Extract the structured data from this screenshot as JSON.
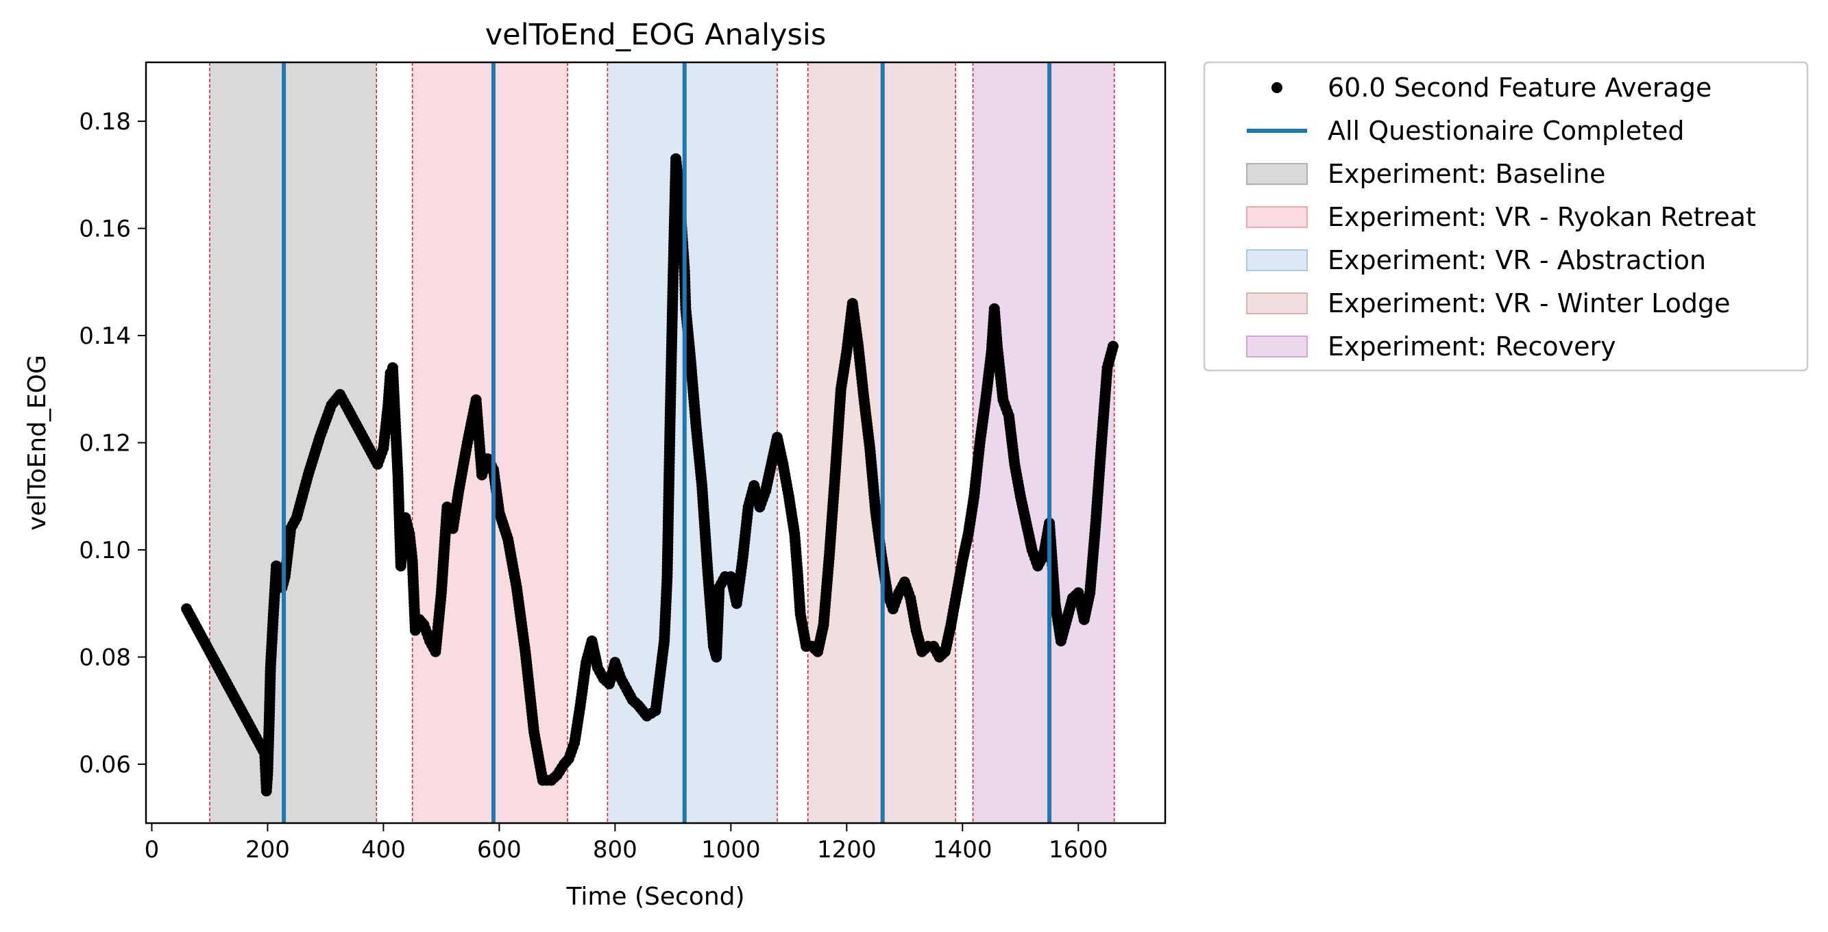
{
  "chart_data": {
    "type": "scatter",
    "title": "velToEnd_EOG Analysis",
    "xlabel": "Time (Second)",
    "ylabel": "velToEnd_EOG",
    "xlim": [
      -10,
      1750
    ],
    "ylim": [
      0.049,
      0.191
    ],
    "xticks": [
      0,
      200,
      400,
      600,
      800,
      1000,
      1200,
      1400,
      1600
    ],
    "yticks": [
      0.06,
      0.08,
      0.1,
      0.12,
      0.14,
      0.16,
      0.18
    ],
    "ytick_labels": [
      "0.06",
      "0.08",
      "0.10",
      "0.12",
      "0.14",
      "0.16",
      "0.18"
    ],
    "grid": false,
    "legend_position": "outside-right",
    "colors": {
      "points": "#000000",
      "questionnaire": "#1f77b4",
      "phase_boundary": "#d62728"
    },
    "legend": [
      {
        "label": "60.0 Second Feature Average",
        "kind": "marker",
        "color": "#000000"
      },
      {
        "label": "All Questionaire Completed",
        "kind": "line",
        "color": "#1f77b4"
      },
      {
        "label": "Experiment: Baseline",
        "kind": "patch",
        "color": "#d9d9d9",
        "edge": "#b0b0b0"
      },
      {
        "label": "Experiment: VR - Ryokan Retreat",
        "kind": "patch",
        "color": "#f8dcdf",
        "edge": "#f0a8b0"
      },
      {
        "label": "Experiment: VR - Abstraction",
        "kind": "patch",
        "color": "#dce8f3",
        "edge": "#a8c8e3"
      },
      {
        "label": "Experiment: VR - Winter Lodge",
        "kind": "patch",
        "color": "#f1dede",
        "edge": "#dcb0b0"
      },
      {
        "label": "Experiment: Recovery",
        "kind": "patch",
        "color": "#ebd8ec",
        "edge": "#cfa8d2"
      }
    ],
    "phases": [
      {
        "name": "Experiment: Baseline",
        "start": 100,
        "end": 388,
        "color": "#d9d9d9"
      },
      {
        "name": "Experiment: VR - Ryokan Retreat",
        "start": 450,
        "end": 718,
        "color": "#f8dcdf"
      },
      {
        "name": "Experiment: VR - Abstraction",
        "start": 787,
        "end": 1080,
        "color": "#dce8f3"
      },
      {
        "name": "Experiment: VR - Winter Lodge",
        "start": 1133,
        "end": 1388,
        "color": "#f1dede"
      },
      {
        "name": "Experiment: Recovery",
        "start": 1418,
        "end": 1662,
        "color": "#ebd8ec"
      }
    ],
    "questionnaire_completed_x": [
      228,
      590,
      920,
      1262,
      1550
    ],
    "series": [
      {
        "name": "60.0 Second Feature Average",
        "x": [
          60,
          120,
          180,
          195,
          198,
          200,
          203,
          205,
          210,
          215,
          220,
          225,
          230,
          240,
          250,
          270,
          290,
          310,
          325,
          335,
          350,
          370,
          390,
          400,
          408,
          412,
          416,
          420,
          425,
          430,
          438,
          445,
          450,
          455,
          462,
          470,
          480,
          490,
          500,
          510,
          520,
          530,
          545,
          560,
          570,
          580,
          590,
          600,
          615,
          630,
          645,
          660,
          675,
          690,
          700,
          712,
          720,
          730,
          740,
          750,
          760,
          770,
          780,
          790,
          800,
          810,
          820,
          830,
          840,
          855,
          870,
          885,
          890,
          895,
          900,
          905,
          910,
          915,
          920,
          922,
          930,
          940,
          950,
          960,
          970,
          975,
          980,
          990,
          1000,
          1010,
          1020,
          1030,
          1040,
          1050,
          1060,
          1070,
          1080,
          1090,
          1100,
          1110,
          1115,
          1120,
          1130,
          1140,
          1150,
          1160,
          1170,
          1180,
          1190,
          1200,
          1210,
          1220,
          1230,
          1240,
          1250,
          1260,
          1270,
          1280,
          1290,
          1300,
          1310,
          1320,
          1330,
          1340,
          1350,
          1360,
          1370,
          1380,
          1390,
          1400,
          1410,
          1420,
          1430,
          1440,
          1450,
          1455,
          1460,
          1470,
          1480,
          1490,
          1500,
          1510,
          1520,
          1530,
          1540,
          1550,
          1560,
          1570,
          1580,
          1590,
          1600,
          1610,
          1620,
          1630,
          1640,
          1650,
          1660
        ],
        "y": [
          0.089,
          0.077,
          0.065,
          0.062,
          0.055,
          0.058,
          0.069,
          0.078,
          0.088,
          0.097,
          0.096,
          0.093,
          0.095,
          0.104,
          0.106,
          0.114,
          0.121,
          0.127,
          0.129,
          0.127,
          0.124,
          0.12,
          0.116,
          0.119,
          0.127,
          0.133,
          0.134,
          0.125,
          0.114,
          0.097,
          0.106,
          0.103,
          0.098,
          0.085,
          0.087,
          0.086,
          0.083,
          0.081,
          0.092,
          0.108,
          0.104,
          0.111,
          0.12,
          0.128,
          0.114,
          0.117,
          0.115,
          0.107,
          0.102,
          0.093,
          0.081,
          0.066,
          0.057,
          0.057,
          0.058,
          0.06,
          0.061,
          0.064,
          0.071,
          0.079,
          0.083,
          0.078,
          0.076,
          0.075,
          0.079,
          0.076,
          0.074,
          0.072,
          0.071,
          0.069,
          0.07,
          0.083,
          0.095,
          0.124,
          0.15,
          0.173,
          0.168,
          0.16,
          0.152,
          0.145,
          0.136,
          0.123,
          0.112,
          0.096,
          0.082,
          0.08,
          0.093,
          0.095,
          0.095,
          0.09,
          0.098,
          0.108,
          0.112,
          0.108,
          0.111,
          0.116,
          0.121,
          0.116,
          0.11,
          0.103,
          0.096,
          0.088,
          0.082,
          0.082,
          0.081,
          0.086,
          0.099,
          0.114,
          0.13,
          0.137,
          0.146,
          0.138,
          0.128,
          0.119,
          0.107,
          0.099,
          0.092,
          0.089,
          0.092,
          0.094,
          0.091,
          0.085,
          0.081,
          0.082,
          0.082,
          0.08,
          0.081,
          0.086,
          0.092,
          0.098,
          0.103,
          0.11,
          0.12,
          0.128,
          0.137,
          0.145,
          0.138,
          0.128,
          0.125,
          0.116,
          0.11,
          0.105,
          0.1,
          0.097,
          0.099,
          0.105,
          0.09,
          0.083,
          0.087,
          0.091,
          0.092,
          0.087,
          0.092,
          0.105,
          0.12,
          0.134,
          0.138
        ]
      }
    ]
  }
}
